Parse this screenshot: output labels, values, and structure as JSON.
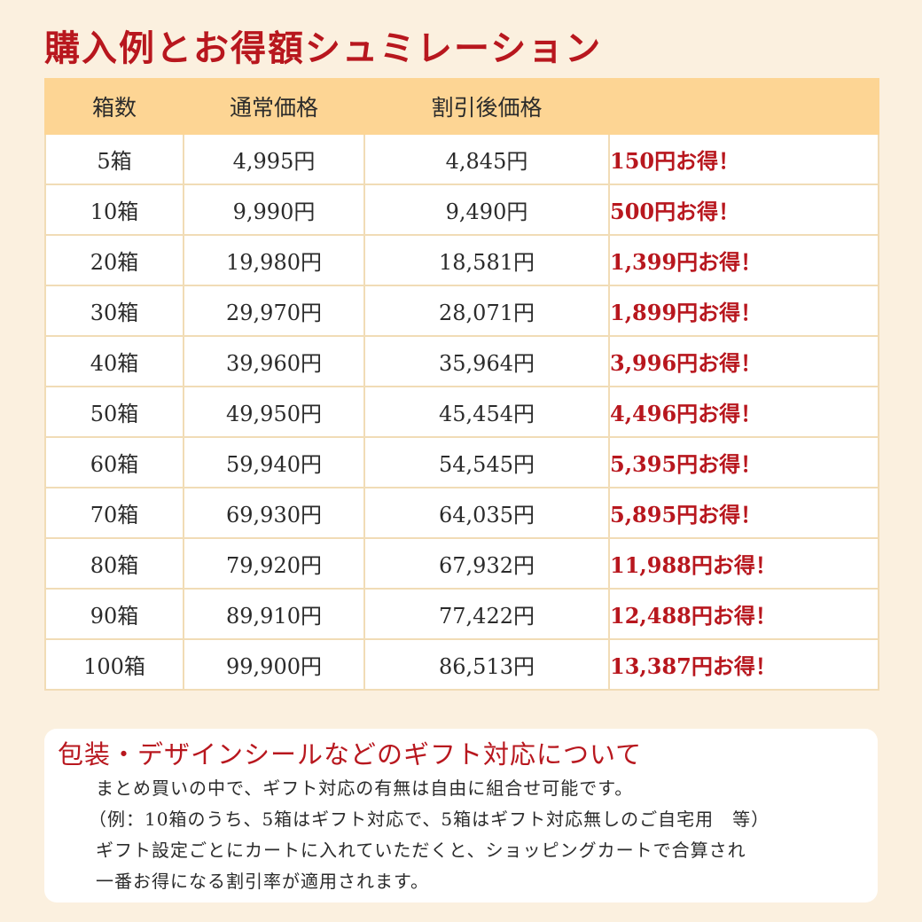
{
  "title": "購入例とお得額シュミレーション",
  "table": {
    "headers": [
      "箱数",
      "通常価格",
      "割引後価格",
      ""
    ],
    "rows": [
      {
        "boxes": "5箱",
        "regular": "4,995円",
        "discounted": "4,845円",
        "saving": "150円お得！"
      },
      {
        "boxes": "10箱",
        "regular": "9,990円",
        "discounted": "9,490円",
        "saving": "500円お得！"
      },
      {
        "boxes": "20箱",
        "regular": "19,980円",
        "discounted": "18,581円",
        "saving": "1,399円お得！"
      },
      {
        "boxes": "30箱",
        "regular": "29,970円",
        "discounted": "28,071円",
        "saving": "1,899円お得！"
      },
      {
        "boxes": "40箱",
        "regular": "39,960円",
        "discounted": "35,964円",
        "saving": "3,996円お得！"
      },
      {
        "boxes": "50箱",
        "regular": "49,950円",
        "discounted": "45,454円",
        "saving": "4,496円お得！"
      },
      {
        "boxes": "60箱",
        "regular": "59,940円",
        "discounted": "54,545円",
        "saving": "5,395円お得！"
      },
      {
        "boxes": "70箱",
        "regular": "69,930円",
        "discounted": "64,035円",
        "saving": "5,895円お得！"
      },
      {
        "boxes": "80箱",
        "regular": "79,920円",
        "discounted": "67,932円",
        "saving": "11,988円お得！"
      },
      {
        "boxes": "90箱",
        "regular": "89,910円",
        "discounted": "77,422円",
        "saving": "12,488円お得！"
      },
      {
        "boxes": "100箱",
        "regular": "99,900円",
        "discounted": "86,513円",
        "saving": "13,387円お得！"
      }
    ]
  },
  "gift": {
    "title": "包装・デザインシールなどのギフト対応について",
    "lines": [
      "まとめ買いの中で、ギフト対応の有無は自由に組合せ可能です。",
      "（例：10箱のうち、5箱はギフト対応で、5箱はギフト対応無しのご自宅用　等）",
      "ギフト設定ごとにカートに入れていただくと、ショッピングカートで合算され",
      "一番お得になる割引率が適用されます。"
    ]
  },
  "colors": {
    "background": "#fbf0df",
    "header": "#fdd594",
    "accent": "#b8171e",
    "grid": "#f1dcb6"
  }
}
